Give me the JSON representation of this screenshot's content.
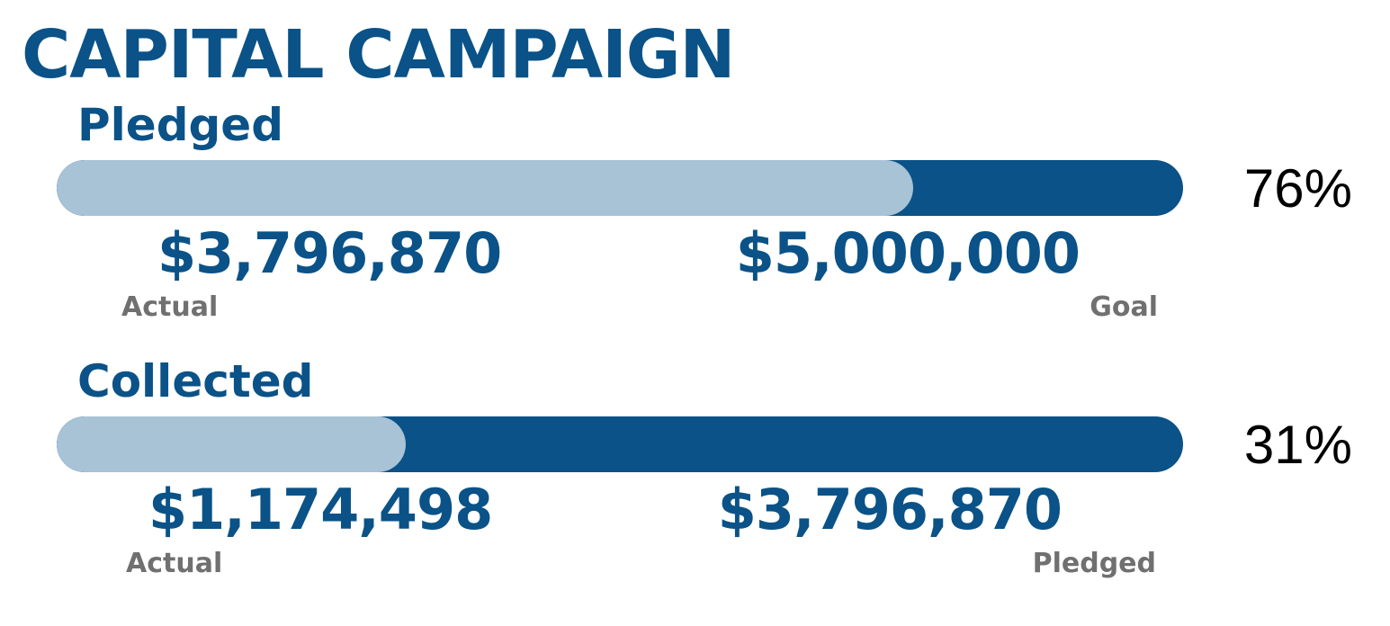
{
  "title": "CAPITAL CAMPAIGN",
  "colors": {
    "primary": "#0a5287",
    "fill": "#a8c2d6",
    "caption": "#707070",
    "text": "#000000"
  },
  "pledged": {
    "label": "Pledged",
    "percent_text": "76%",
    "progress": 0.76,
    "actual_amount": "$3,796,870",
    "actual_caption": "Actual",
    "target_amount": "$5,000,000",
    "target_caption": "Goal"
  },
  "collected": {
    "label": "Collected",
    "percent_text": "31%",
    "progress": 0.31,
    "actual_amount": "$1,174,498",
    "actual_caption": "Actual",
    "target_amount": "$3,796,870",
    "target_caption": "Pledged"
  }
}
